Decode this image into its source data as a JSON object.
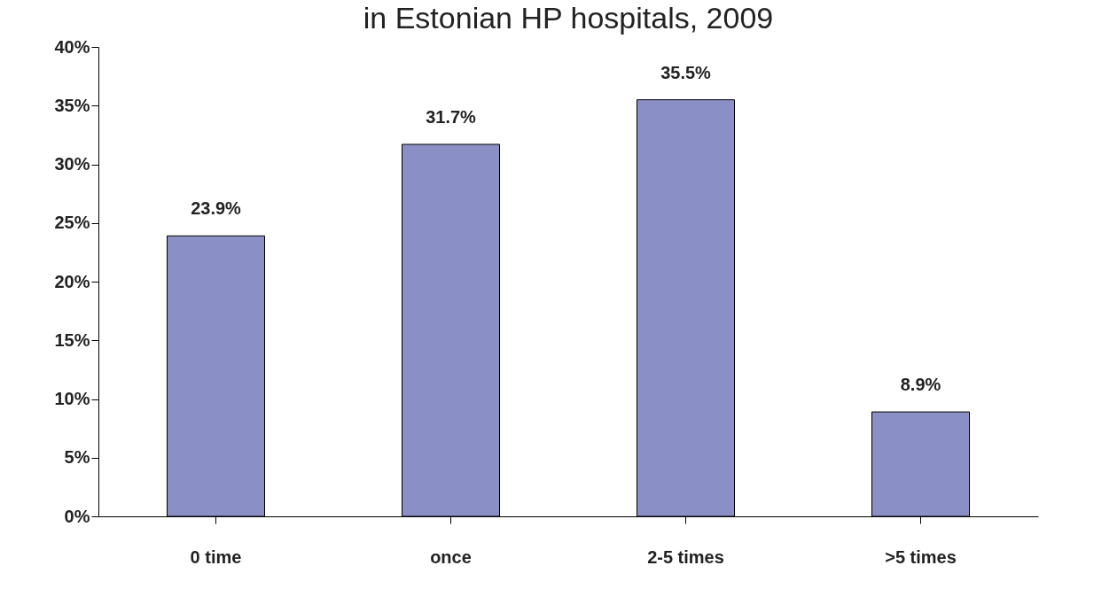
{
  "chart_data": {
    "type": "bar",
    "title": "in Estonian HP hospitals, 2009",
    "categories": [
      "0 time",
      "once",
      "2-5 times",
      ">5 times"
    ],
    "values": [
      23.9,
      31.7,
      35.5,
      8.9
    ],
    "value_labels": [
      "23.9%",
      "31.7%",
      "35.5%",
      "8.9%"
    ],
    "color": "#8a8fc5",
    "ylim": [
      0,
      40
    ],
    "yticks": [
      {
        "value": 0,
        "label": "0%"
      },
      {
        "value": 5,
        "label": "5%"
      },
      {
        "value": 10,
        "label": "10%"
      },
      {
        "value": 15,
        "label": "15%"
      },
      {
        "value": 20,
        "label": "20%"
      },
      {
        "value": 25,
        "label": "25%"
      },
      {
        "value": 30,
        "label": "30%"
      },
      {
        "value": 35,
        "label": "35%"
      },
      {
        "value": 40,
        "label": "40%"
      }
    ],
    "grid": false
  }
}
